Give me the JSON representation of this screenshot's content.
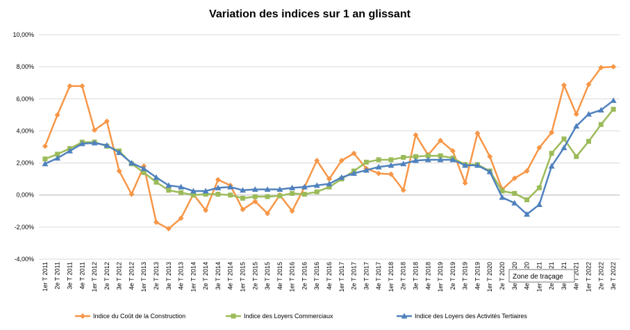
{
  "chart_data": {
    "type": "line",
    "title": "Variation des indices sur 1 an glissant",
    "xlabel": "",
    "ylabel": "",
    "ylim": [
      -4,
      10
    ],
    "yticks": [
      "-4,00%",
      "-2,00%",
      "0,00%",
      "2,00%",
      "4,00%",
      "6,00%",
      "8,00%",
      "10,00%"
    ],
    "ytick_values": [
      -4,
      -2,
      0,
      2,
      4,
      6,
      8,
      10
    ],
    "grid": true,
    "legend_position": "bottom",
    "categories": [
      "1er T 2011",
      "2e T 2011",
      "3e T 2011",
      "4e T 2011",
      "1er T 2012",
      "2e T 2012",
      "3e T 2012",
      "4e T 2012",
      "1er T 2013",
      "2e T 2013",
      "3e T 2013",
      "4e T 2013",
      "1er T 2014",
      "2e T 2014",
      "3e T 2014",
      "4e T 2014",
      "1er T 2015",
      "2e T 2015",
      "3e T 2015",
      "4e T 2015",
      "1er T 2016",
      "2e T 2016",
      "3e T 2016",
      "4e T 2016",
      "1er T 2017",
      "2e T 2017",
      "3e T 2017",
      "4e T 2017",
      "1er T 2018",
      "2e T 2018",
      "3e T 2018",
      "4e T 2018",
      "1er T 2019",
      "2e T 2019",
      "3e T 2019",
      "4e T 2019",
      "1er T 2020",
      "2e T 2020",
      "3e T 2020",
      "4e T 2020",
      "1er T 2021",
      "2e T 2021",
      "3e T 2021",
      "4e T 2021",
      "1er T 2022",
      "2e T 2022",
      "3e T 2022"
    ],
    "series": [
      {
        "name": "Indice du Coût de la Construction",
        "color": "#F79646",
        "marker": "diamond",
        "values": [
          3.05,
          5.0,
          6.8,
          6.8,
          4.05,
          4.6,
          1.5,
          0.05,
          1.8,
          -1.7,
          -2.1,
          -1.45,
          0.05,
          -0.95,
          0.95,
          0.6,
          -0.9,
          -0.4,
          -1.15,
          0.0,
          -1.0,
          0.5,
          2.15,
          1.0,
          2.15,
          2.6,
          1.65,
          1.35,
          1.3,
          0.3,
          3.75,
          2.5,
          3.4,
          2.75,
          0.75,
          3.85,
          2.4,
          0.35,
          1.05,
          1.5,
          2.95,
          3.9,
          6.85,
          5.05,
          6.9,
          7.95,
          8.0
        ]
      },
      {
        "name": "Indice des Loyers Commerciaux",
        "color": "#9BBB59",
        "marker": "square",
        "values": [
          2.25,
          2.55,
          2.9,
          3.3,
          3.3,
          3.05,
          2.75,
          1.95,
          1.4,
          0.8,
          0.3,
          0.15,
          0.0,
          0.05,
          0.05,
          0.0,
          -0.2,
          -0.1,
          -0.1,
          -0.05,
          0.1,
          0.05,
          0.2,
          0.5,
          1.0,
          1.5,
          2.05,
          2.2,
          2.2,
          2.35,
          2.4,
          2.45,
          2.45,
          2.3,
          1.9,
          1.9,
          1.5,
          0.25,
          0.1,
          -0.3,
          0.45,
          2.6,
          3.5,
          2.4,
          3.35,
          4.4,
          5.35
        ]
      },
      {
        "name": "Indice des Loyers des Activités Tertiaires",
        "color": "#4F81BD",
        "marker": "triangle",
        "values": [
          1.95,
          2.3,
          2.75,
          3.2,
          3.25,
          3.1,
          2.65,
          2.0,
          1.65,
          1.1,
          0.6,
          0.5,
          0.25,
          0.25,
          0.45,
          0.5,
          0.3,
          0.35,
          0.35,
          0.35,
          0.45,
          0.5,
          0.6,
          0.7,
          1.1,
          1.35,
          1.55,
          1.75,
          1.85,
          1.95,
          2.15,
          2.2,
          2.2,
          2.2,
          1.85,
          1.85,
          1.45,
          -0.15,
          -0.5,
          -1.2,
          -0.6,
          1.8,
          2.95,
          4.3,
          5.05,
          5.3,
          5.9
        ]
      }
    ]
  },
  "tooltip": {
    "label": "Zone de traçage"
  }
}
